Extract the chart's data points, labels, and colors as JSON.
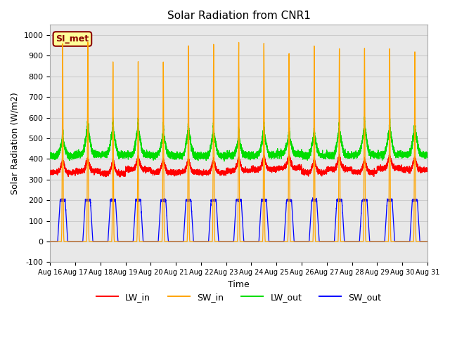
{
  "title": "Solar Radiation from CNR1",
  "xlabel": "Time",
  "ylabel": "Solar Radiation (W/m2)",
  "ylim": [
    -100,
    1050
  ],
  "n_days": 15,
  "annotation_text": "SI_met",
  "annotation_color": "#8B0000",
  "annotation_bg": "#FFFF99",
  "annotation_border": "#8B0000",
  "grid_color": "#cccccc",
  "bg_color": "#e8e8e8",
  "line_colors": {
    "LW_in": "#ff0000",
    "SW_in": "#ffa500",
    "LW_out": "#00dd00",
    "SW_out": "#0000ff"
  },
  "xtick_labels": [
    "Aug 16",
    "Aug 17",
    "Aug 18",
    "Aug 19",
    "Aug 20",
    "Aug 21",
    "Aug 22",
    "Aug 23",
    "Aug 24",
    "Aug 25",
    "Aug 26",
    "Aug 27",
    "Aug 28",
    "Aug 29",
    "Aug 30",
    "Aug 31"
  ],
  "ytick_values": [
    -100,
    0,
    100,
    200,
    300,
    400,
    500,
    600,
    700,
    800,
    900,
    1000
  ],
  "sw_in_peaks": [
    960,
    960,
    870,
    860,
    870,
    940,
    950,
    940,
    955,
    915,
    940,
    935,
    930,
    940,
    930
  ],
  "sw_out_max": 200,
  "lw_in_base": 340,
  "lw_out_base": 420,
  "lw_out_peak": 540
}
